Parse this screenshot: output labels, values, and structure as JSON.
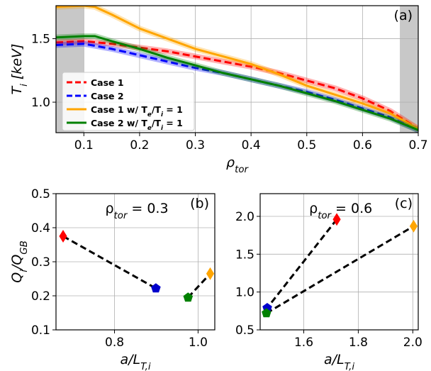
{
  "chart_data": [
    {
      "id": "a",
      "type": "line",
      "panel_label": "(a)",
      "xlabel": "ρ_tor",
      "ylabel": "T_i [keV]",
      "xlim": [
        0.05,
        0.7
      ],
      "ylim": [
        0.76,
        1.76
      ],
      "xticks": [
        "0.1",
        "0.2",
        "0.3",
        "0.4",
        "0.5",
        "0.6",
        "0.7"
      ],
      "yticks": [
        "1.0",
        "1.5"
      ],
      "grid": true,
      "shaded_regions": [
        [
          0.05,
          0.1
        ],
        [
          0.667,
          0.7
        ]
      ],
      "legend_position": "lower-left",
      "series": [
        {
          "name": "Case 1",
          "color": "#ff0000",
          "style": "dashed",
          "x": [
            0.05,
            0.1,
            0.15,
            0.2,
            0.25,
            0.3,
            0.35,
            0.4,
            0.45,
            0.5,
            0.55,
            0.6,
            0.65,
            0.7
          ],
          "y": [
            1.47,
            1.48,
            1.46,
            1.43,
            1.4,
            1.36,
            1.32,
            1.28,
            1.23,
            1.17,
            1.11,
            1.03,
            0.93,
            0.79
          ]
        },
        {
          "name": "Case 2",
          "color": "#0000ff",
          "style": "dashed",
          "x": [
            0.05,
            0.1,
            0.15,
            0.2,
            0.25,
            0.3,
            0.35,
            0.4,
            0.45,
            0.5,
            0.55,
            0.6,
            0.65,
            0.7
          ],
          "y": [
            1.45,
            1.46,
            1.42,
            1.37,
            1.32,
            1.27,
            1.23,
            1.18,
            1.13,
            1.08,
            1.02,
            0.95,
            0.88,
            0.78
          ]
        },
        {
          "name": "Case 1 w/ T_e/T_i = 1",
          "color": "#ffa500",
          "style": "solid",
          "x": [
            0.05,
            0.1,
            0.12,
            0.15,
            0.2,
            0.25,
            0.3,
            0.35,
            0.4,
            0.45,
            0.5,
            0.55,
            0.6,
            0.65,
            0.7
          ],
          "y": [
            1.75,
            1.76,
            1.75,
            1.69,
            1.58,
            1.5,
            1.42,
            1.36,
            1.3,
            1.22,
            1.13,
            1.06,
            0.99,
            0.91,
            0.79
          ]
        },
        {
          "name": "Case 2 w/ T_e/T_i = 1",
          "color": "#008000",
          "style": "solid",
          "x": [
            0.05,
            0.1,
            0.12,
            0.15,
            0.2,
            0.25,
            0.3,
            0.35,
            0.4,
            0.45,
            0.5,
            0.55,
            0.6,
            0.65,
            0.7
          ],
          "y": [
            1.51,
            1.52,
            1.52,
            1.48,
            1.42,
            1.35,
            1.29,
            1.23,
            1.18,
            1.13,
            1.07,
            1.01,
            0.94,
            0.87,
            0.78
          ]
        }
      ]
    },
    {
      "id": "b",
      "type": "scatter",
      "panel_label": "(b)",
      "annotation": "ρ_tor = 0.3",
      "xlabel": "a/L_T,i",
      "ylabel": "Q_i/Q_GB",
      "xlim": [
        0.66,
        1.04
      ],
      "ylim": [
        0.1,
        0.5
      ],
      "xticks": [
        "0.8",
        "1.0"
      ],
      "yticks": [
        "0.1",
        "0.2",
        "0.3",
        "0.4",
        "0.5"
      ],
      "grid": true,
      "points": [
        {
          "case": "Case 1",
          "x": 0.677,
          "y": 0.375,
          "color": "#ff0000",
          "marker": "diamond"
        },
        {
          "case": "Case 2",
          "x": 0.899,
          "y": 0.222,
          "color": "#0000cc",
          "marker": "pentagon"
        },
        {
          "case": "Case 2 w/ T_e/T_i = 1",
          "x": 0.976,
          "y": 0.195,
          "color": "#008000",
          "marker": "pentagon"
        },
        {
          "case": "Case 1 w/ T_e/T_i = 1",
          "x": 1.029,
          "y": 0.265,
          "color": "#ffa500",
          "marker": "diamond"
        }
      ],
      "links": [
        [
          0,
          1
        ],
        [
          2,
          3
        ]
      ]
    },
    {
      "id": "c",
      "type": "scatter",
      "panel_label": "(c)",
      "annotation": "ρ_tor = 0.6",
      "xlabel": "a/L_T,i",
      "ylabel": "",
      "xlim": [
        1.44,
        2.02
      ],
      "ylim": [
        0.5,
        2.3
      ],
      "xticks": [
        "1.6",
        "1.8",
        "2.0"
      ],
      "yticks": [
        "0.5",
        "1.0",
        "1.5",
        "2.0"
      ],
      "grid": true,
      "points": [
        {
          "case": "Case 1",
          "x": 1.721,
          "y": 1.96,
          "color": "#ff0000",
          "marker": "diamond"
        },
        {
          "case": "Case 2",
          "x": 1.466,
          "y": 0.79,
          "color": "#0000cc",
          "marker": "pentagon"
        },
        {
          "case": "Case 2 w/ T_e/T_i = 1",
          "x": 1.463,
          "y": 0.72,
          "color": "#008000",
          "marker": "pentagon"
        },
        {
          "case": "Case 1 w/ T_e/T_i = 1",
          "x": 2.003,
          "y": 1.87,
          "color": "#ffa500",
          "marker": "diamond"
        }
      ],
      "links": [
        [
          0,
          1
        ],
        [
          2,
          3
        ]
      ]
    }
  ]
}
